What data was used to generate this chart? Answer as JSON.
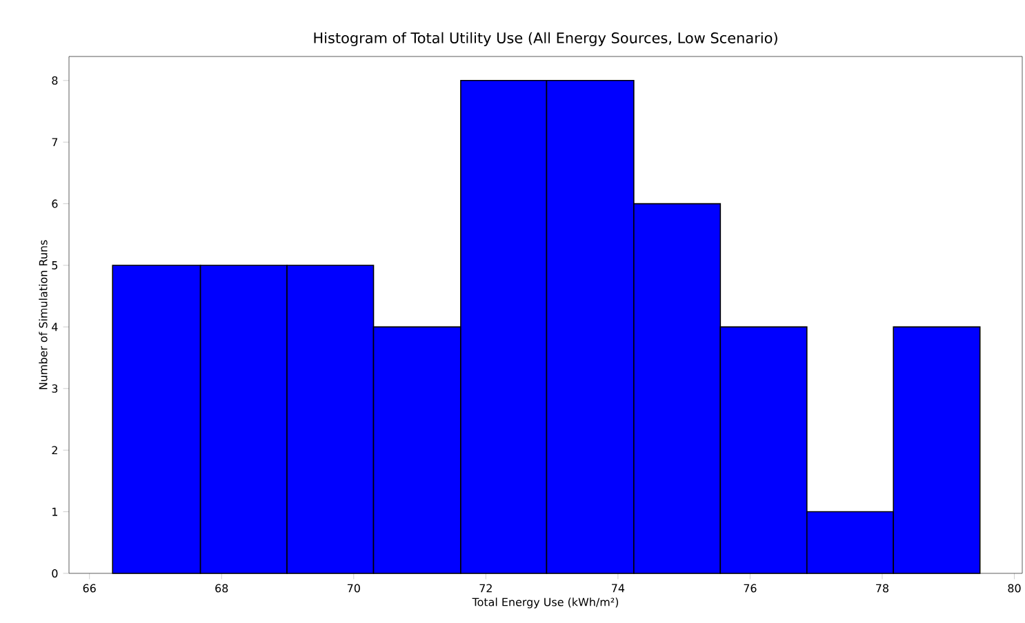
{
  "chart_data": {
    "type": "histogram",
    "title": "Histogram of Total Utility Use (All Energy Sources, Low Scenario)",
    "xlabel": "Total Energy Use (kWh/m²)",
    "ylabel": "Number of Simulation Runs",
    "bins": [
      66.35,
      67.68,
      68.99,
      70.3,
      71.62,
      72.92,
      74.24,
      75.55,
      76.86,
      78.17,
      79.48
    ],
    "values": [
      5,
      5,
      5,
      4,
      8,
      8,
      6,
      4,
      1,
      4
    ],
    "color": "#0000ff",
    "xlim": [
      65.69,
      80.12
    ],
    "ylim": [
      0,
      8.39
    ],
    "xticks": [
      66,
      68,
      70,
      72,
      74,
      76,
      78,
      80
    ],
    "yticks": [
      0,
      1,
      2,
      3,
      4,
      5,
      6,
      7,
      8
    ],
    "grid": false
  }
}
